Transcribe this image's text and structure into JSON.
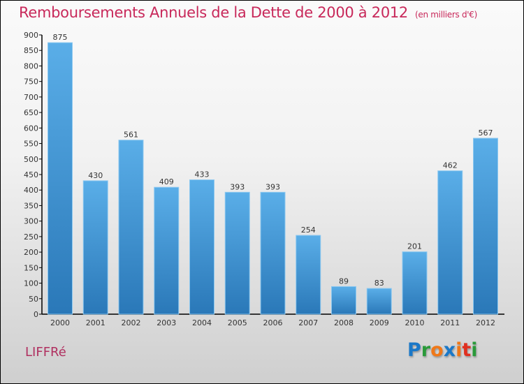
{
  "title": "Remboursements Annuels de la Dette de 2000 à 2012",
  "unit": "(en milliers d'€)",
  "city": "LIFFRé",
  "logo": {
    "text": "Proxiti",
    "letters": [
      {
        "c": "P",
        "color": "#1a78c8"
      },
      {
        "c": "r",
        "color": "#2a9a3a"
      },
      {
        "c": "o",
        "color": "#f07818"
      },
      {
        "c": "x",
        "color": "#1a78c8"
      },
      {
        "c": "i",
        "color": "#f07818"
      },
      {
        "c": "t",
        "color": "#e03020"
      },
      {
        "c": "i",
        "color": "#2a9a3a"
      }
    ]
  },
  "chart_data": {
    "type": "bar",
    "title": "Remboursements Annuels de la Dette de 2000 à 2012",
    "xlabel": "",
    "ylabel": "(en milliers d'€)",
    "categories": [
      "2000",
      "2001",
      "2002",
      "2003",
      "2004",
      "2005",
      "2006",
      "2007",
      "2008",
      "2009",
      "2010",
      "2011",
      "2012"
    ],
    "values": [
      875,
      430,
      561,
      409,
      433,
      393,
      393,
      254,
      89,
      83,
      201,
      462,
      567
    ],
    "ylim": [
      0,
      900
    ],
    "yticks": [
      0,
      50,
      100,
      150,
      200,
      250,
      300,
      350,
      400,
      450,
      500,
      550,
      600,
      650,
      700,
      750,
      800,
      850,
      900
    ],
    "grid": false,
    "bar_color_top": "#5aaee8",
    "bar_color_bottom": "#2a78b8"
  }
}
